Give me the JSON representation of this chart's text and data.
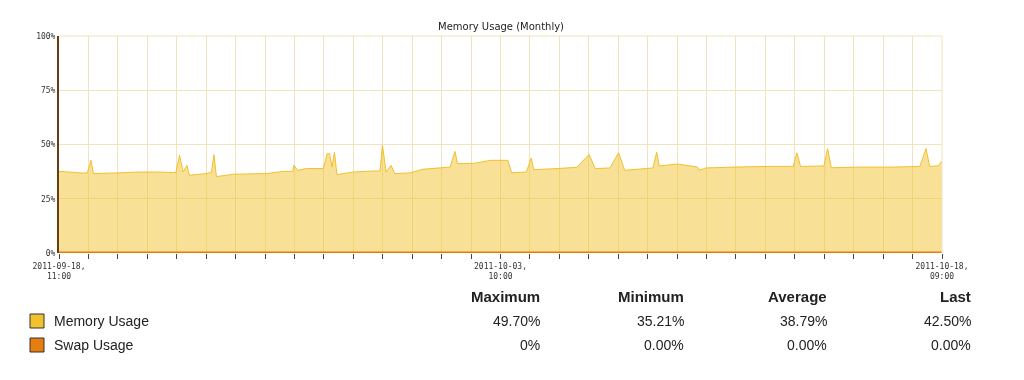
{
  "chart_data": {
    "type": "area",
    "title": "Memory Usage (Monthly)",
    "xlim": [
      "2011-09-18T11:00",
      "2011-10-18T09:00"
    ],
    "xticks": [
      {
        "value": "2011-09-18T11:00",
        "label": "2011-09-18,\n11:00"
      },
      {
        "value": "2011-09-19T10:56",
        "label": null
      },
      {
        "value": "2011-09-20T10:52",
        "label": null
      },
      {
        "value": "2011-09-21T10:48",
        "label": null
      },
      {
        "value": "2011-09-22T10:44",
        "label": null
      },
      {
        "value": "2011-09-23T10:40",
        "label": null
      },
      {
        "value": "2011-09-24T10:36",
        "label": null
      },
      {
        "value": "2011-09-25T10:32",
        "label": null
      },
      {
        "value": "2011-09-26T10:28",
        "label": null
      },
      {
        "value": "2011-09-27T10:24",
        "label": null
      },
      {
        "value": "2011-09-28T10:20",
        "label": null
      },
      {
        "value": "2011-09-29T10:16",
        "label": null
      },
      {
        "value": "2011-09-30T10:12",
        "label": null
      },
      {
        "value": "2011-10-01T10:08",
        "label": null
      },
      {
        "value": "2011-10-02T10:04",
        "label": null
      },
      {
        "value": "2011-10-03T10:00",
        "label": "2011-10-03,\n10:00"
      },
      {
        "value": "2011-10-04T09:56",
        "label": null
      },
      {
        "value": "2011-10-05T09:52",
        "label": null
      },
      {
        "value": "2011-10-06T09:48",
        "label": null
      },
      {
        "value": "2011-10-07T09:44",
        "label": null
      },
      {
        "value": "2011-10-08T09:40",
        "label": null
      },
      {
        "value": "2011-10-09T09:36",
        "label": null
      },
      {
        "value": "2011-10-10T09:32",
        "label": null
      },
      {
        "value": "2011-10-11T09:28",
        "label": null
      },
      {
        "value": "2011-10-12T09:24",
        "label": null
      },
      {
        "value": "2011-10-13T09:20",
        "label": null
      },
      {
        "value": "2011-10-14T09:16",
        "label": null
      },
      {
        "value": "2011-10-15T09:12",
        "label": null
      },
      {
        "value": "2011-10-16T09:08",
        "label": null
      },
      {
        "value": "2011-10-17T09:04",
        "label": null
      },
      {
        "value": "2011-10-18T09:00",
        "label": "2011-10-18,\n09:00"
      }
    ],
    "ylim": [
      0,
      100
    ],
    "yticks": [
      {
        "value": 0,
        "label": "0%"
      },
      {
        "value": 25,
        "label": "25%"
      },
      {
        "value": 50,
        "label": "50%"
      },
      {
        "value": 75,
        "label": "75%"
      },
      {
        "value": 100,
        "label": "100%"
      }
    ],
    "grid": true,
    "legend": "bottom",
    "series": [
      {
        "name": "Memory Usage",
        "color": "#f2c12e",
        "x": [
          "2011-09-18T11:00",
          "2011-09-18T20:00",
          "2011-09-19T04:00",
          "2011-09-19T10:00",
          "2011-09-19T13:00",
          "2011-09-19T15:00",
          "2011-09-20T10:00",
          "2011-09-21T05:00",
          "2011-09-21T21:00",
          "2011-09-22T10:00",
          "2011-09-22T13:00",
          "2011-09-22T16:00",
          "2011-09-22T19:00",
          "2011-09-22T21:00",
          "2011-09-23T11:00",
          "2011-09-23T15:00",
          "2011-09-23T17:00",
          "2011-09-23T19:00",
          "2011-09-24T09:00",
          "2011-09-25T12:00",
          "2011-09-26T01:00",
          "2011-09-26T09:00",
          "2011-09-26T10:00",
          "2011-09-26T13:00",
          "2011-09-26T20:00",
          "2011-09-27T10:00",
          "2011-09-27T13:00",
          "2011-09-27T15:00",
          "2011-09-27T17:00",
          "2011-09-27T19:00",
          "2011-09-27T21:00",
          "2011-09-28T10:00",
          "2011-09-29T03:00",
          "2011-09-29T08:00",
          "2011-09-29T10:00",
          "2011-09-29T13:00",
          "2011-09-29T17:00",
          "2011-09-29T20:00",
          "2011-09-30T08:00",
          "2011-09-30T19:00",
          "2011-10-01T17:00",
          "2011-10-01T21:00",
          "2011-10-01T23:00",
          "2011-10-02T12:00",
          "2011-10-03T02:00",
          "2011-10-03T16:00",
          "2011-10-03T19:00",
          "2011-10-04T07:00",
          "2011-10-04T11:00",
          "2011-10-04T13:00",
          "2011-10-05T08:00",
          "2011-10-06T00:00",
          "2011-10-06T10:00",
          "2011-10-06T15:00",
          "2011-10-07T03:00",
          "2011-10-07T10:00",
          "2011-10-07T15:00",
          "2011-10-08T14:00",
          "2011-10-08T17:00",
          "2011-10-08T19:00",
          "2011-10-09T10:00",
          "2011-10-10T02:00",
          "2011-10-10T04:00",
          "2011-10-10T09:00",
          "2011-10-11T09:00",
          "2011-10-12T11:00",
          "2011-10-13T08:00",
          "2011-10-13T11:00",
          "2011-10-13T14:00",
          "2011-10-14T09:00",
          "2011-10-14T12:00",
          "2011-10-14T15:00",
          "2011-10-15T15:00",
          "2011-10-16T18:00",
          "2011-10-17T15:00",
          "2011-10-17T20:00",
          "2011-10-17T23:00",
          "2011-10-18T06:00",
          "2011-10-18T09:00"
        ],
        "values": [
          37.6,
          37.3,
          36.9,
          36.9,
          42.7,
          36.6,
          36.9,
          37.3,
          37.3,
          37.0,
          45.0,
          37.3,
          40.4,
          35.8,
          36.6,
          37.3,
          45.3,
          35.2,
          36.3,
          36.6,
          37.6,
          37.6,
          40.4,
          38.1,
          38.9,
          38.9,
          45.8,
          45.8,
          39.6,
          46.5,
          36.1,
          37.3,
          37.8,
          37.8,
          49.7,
          37.3,
          40.4,
          36.6,
          36.9,
          38.6,
          39.6,
          46.8,
          41.2,
          41.3,
          42.7,
          42.7,
          37.0,
          37.3,
          43.8,
          38.4,
          38.9,
          39.5,
          45.4,
          38.9,
          39.2,
          46.2,
          38.1,
          39.2,
          46.5,
          40.1,
          41.0,
          39.6,
          38.2,
          39.2,
          39.6,
          39.9,
          39.9,
          46.2,
          39.9,
          40.1,
          48.1,
          39.3,
          39.6,
          39.6,
          39.9,
          48.1,
          39.9,
          40.2,
          42.5
        ]
      },
      {
        "name": "Swap Usage",
        "color": "#e87d0f",
        "type": "line",
        "x": [
          "2011-09-18T11:00",
          "2011-10-18T09:00"
        ],
        "values": [
          0,
          0
        ]
      }
    ],
    "annotations": [
      "Maximum",
      "Minimum",
      "Average",
      "Last",
      "49.70%",
      "35.21%",
      "38.79%",
      "42.50%",
      "0%",
      "0.00%",
      "0.00%",
      "0.00%"
    ]
  }
}
